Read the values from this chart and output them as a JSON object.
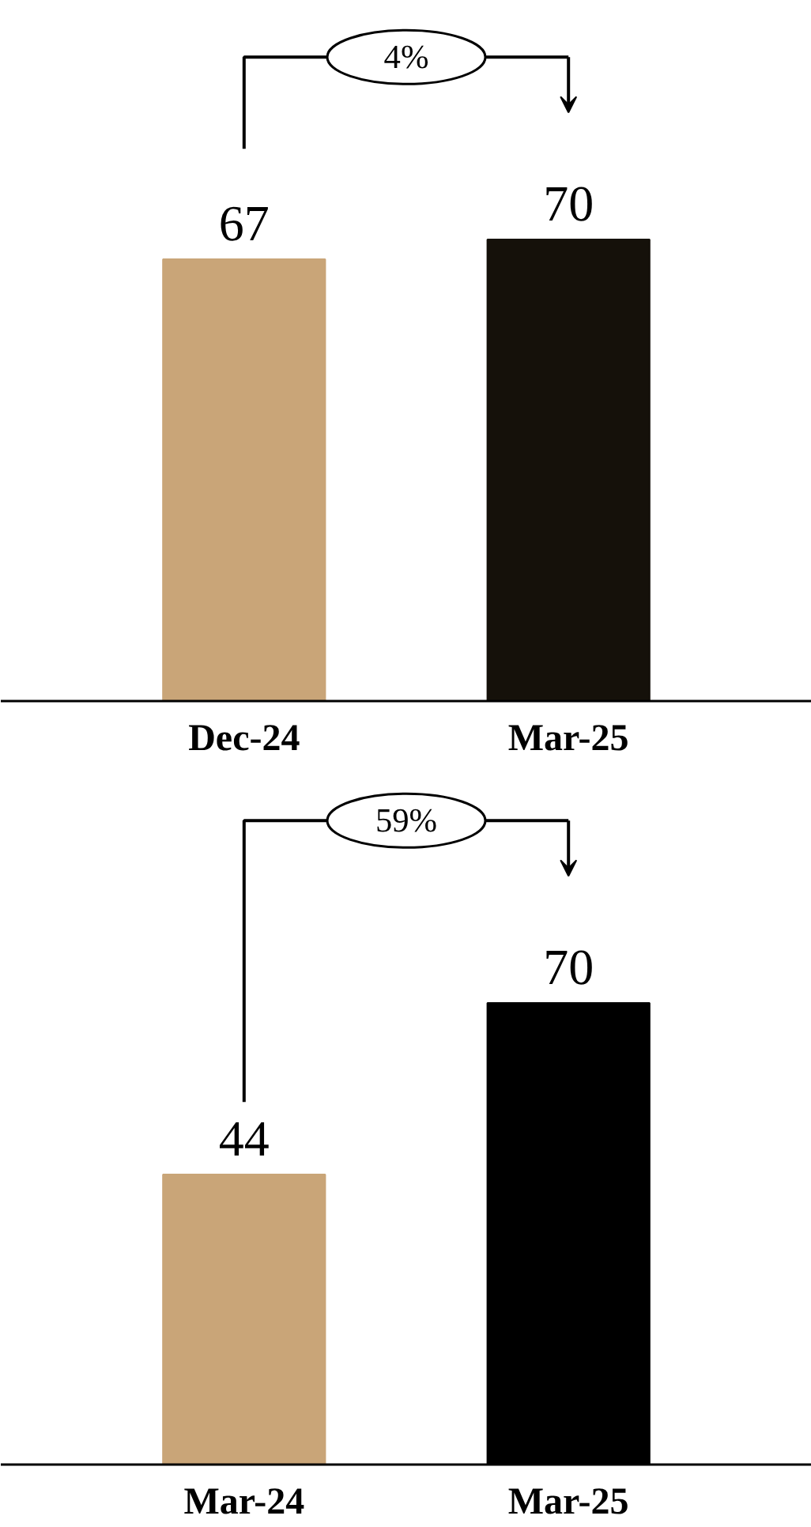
{
  "chart_data": [
    {
      "type": "bar",
      "categories": [
        "Dec-24",
        "Mar-25"
      ],
      "values": [
        67,
        70
      ],
      "colors": [
        "#c9a578",
        "#15110a"
      ],
      "data_labels": true,
      "annotations": [
        "4%"
      ]
    },
    {
      "type": "bar",
      "categories": [
        "Mar-24",
        "Mar-25"
      ],
      "values": [
        44,
        70
      ],
      "colors": [
        "#c9a578",
        "#000000"
      ],
      "data_labels": true,
      "annotations": [
        "59%"
      ]
    }
  ]
}
